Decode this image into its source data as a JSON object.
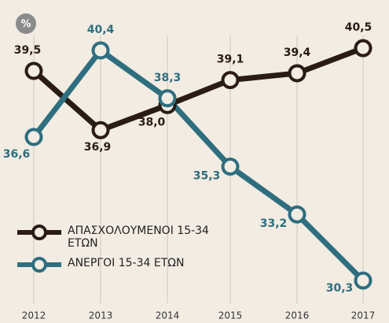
{
  "chart_data": {
    "type": "line",
    "unit_badge": "%",
    "categories": [
      "2012",
      "2013",
      "2014",
      "2015",
      "2016",
      "2017"
    ],
    "ylim": [
      29.3,
      41.3
    ],
    "grid": true,
    "series": [
      {
        "name": "ΑΠΑΣΧΟΛΟΥΜΕΝΟΙ 15-34 ΕΤΩΝ",
        "color": "#2a1c13",
        "values": [
          39.5,
          36.9,
          38.0,
          39.1,
          39.4,
          40.5
        ],
        "value_labels": [
          "39,5",
          "36,9",
          "38,0",
          "39,1",
          "39,4",
          "40,5"
        ]
      },
      {
        "name": "ΑΝΕΡΓΟΙ 15-34 ΕΤΩΝ",
        "color": "#2e6e7f",
        "values": [
          36.6,
          40.4,
          38.3,
          35.3,
          33.2,
          30.3
        ],
        "value_labels": [
          "36,6",
          "40,4",
          "38,3",
          "35,3",
          "33,2",
          "30,3"
        ]
      }
    ]
  }
}
